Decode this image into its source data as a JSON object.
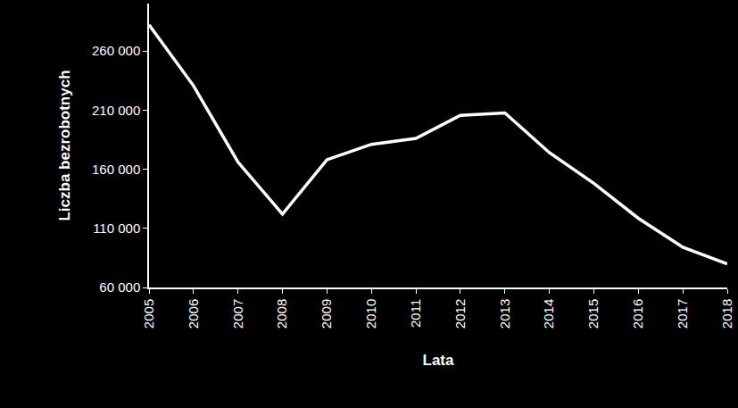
{
  "chart_data": {
    "type": "line",
    "x_label": "Lata",
    "y_label": "Liczba bezrobotnych",
    "categories": [
      "2005",
      "2006",
      "2007",
      "2008",
      "2009",
      "2010",
      "2011",
      "2012",
      "2013",
      "2014",
      "2015",
      "2016",
      "2017",
      "2018"
    ],
    "values": [
      282000,
      230500,
      166000,
      122000,
      168000,
      181000,
      186000,
      205500,
      207500,
      174000,
      148000,
      118500,
      94000,
      80000
    ],
    "color": "#ffffff",
    "ylim": [
      60000,
      300000
    ],
    "yticks": [
      {
        "value": 60000,
        "label": "60 000"
      },
      {
        "value": 110000,
        "label": "110 000"
      },
      {
        "value": 160000,
        "label": "160 000"
      },
      {
        "value": 210000,
        "label": "210 000"
      },
      {
        "value": 260000,
        "label": "260 000"
      }
    ],
    "grid": false
  }
}
